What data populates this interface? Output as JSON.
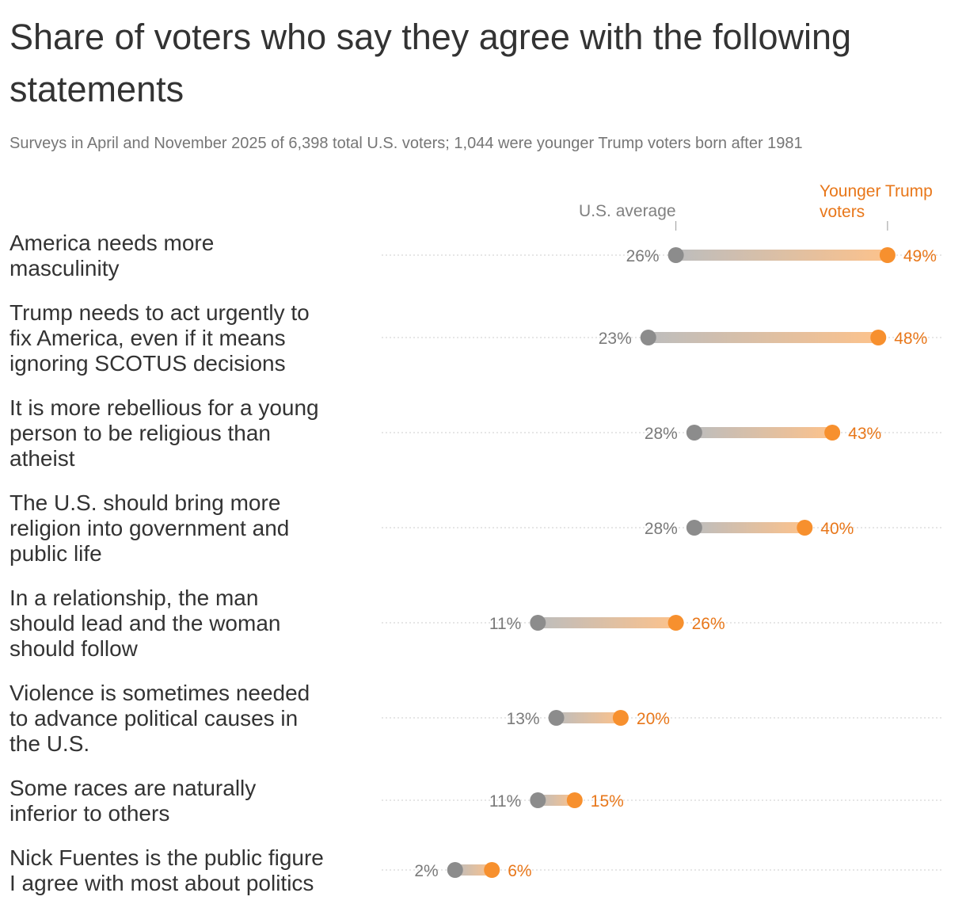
{
  "title": "Share of voters who say they agree with the following statements",
  "subtitle": "Surveys in April and November 2025 of 6,398 total U.S. voters; 1,044 were younger Trump voters born after 1981",
  "colors": {
    "us_average": "#8c8c8c",
    "younger_trump": "#f7902e",
    "younger_trump_text": "#e8771a",
    "guide": "#d6d6d6"
  },
  "chart_data": {
    "type": "dumbbell",
    "unit": "%",
    "series": [
      {
        "name": "U.S. average",
        "color": "#8c8c8c"
      },
      {
        "name": "Younger Trump voters",
        "color": "#f7902e"
      }
    ],
    "rows": [
      {
        "statement": "America needs more masculinity",
        "lines": [
          "America needs more",
          "masculinity"
        ],
        "us_average": 26,
        "younger_trump": 49
      },
      {
        "statement": "Trump needs to act urgently to fix America, even if it means ignoring SCOTUS decisions",
        "lines": [
          "Trump needs to act urgently to",
          "fix America, even if it means",
          "ignoring SCOTUS decisions"
        ],
        "us_average": 23,
        "younger_trump": 48
      },
      {
        "statement": "It is more rebellious for a young person to be religious than atheist",
        "lines": [
          "It is more rebellious for a young",
          "person to be religious than",
          "atheist"
        ],
        "us_average": 28,
        "younger_trump": 43
      },
      {
        "statement": "The U.S. should bring more religion into government and public life",
        "lines": [
          "The U.S. should bring more",
          "religion into government and",
          "public life"
        ],
        "us_average": 28,
        "younger_trump": 40
      },
      {
        "statement": "In a relationship, the man should lead and the woman should follow",
        "lines": [
          "In a relationship, the man",
          "should lead and the woman",
          "should follow"
        ],
        "us_average": 11,
        "younger_trump": 26
      },
      {
        "statement": "Violence is sometimes needed to advance political causes in the U.S.",
        "lines": [
          "Violence is sometimes needed",
          "to advance political causes in",
          "the U.S."
        ],
        "us_average": 13,
        "younger_trump": 20
      },
      {
        "statement": "Some races are naturally inferior to others",
        "lines": [
          "Some races are naturally",
          "inferior to others"
        ],
        "us_average": 11,
        "younger_trump": 15
      },
      {
        "statement": "Nick Fuentes is the public figure I agree with most about politics",
        "lines": [
          "Nick Fuentes is the public figure",
          "I agree with most about politics"
        ],
        "us_average": 2,
        "younger_trump": 6
      }
    ],
    "legend": {
      "us_average": [
        "U.S. average"
      ],
      "younger_trump": [
        "Younger Trump",
        "voters"
      ]
    }
  }
}
